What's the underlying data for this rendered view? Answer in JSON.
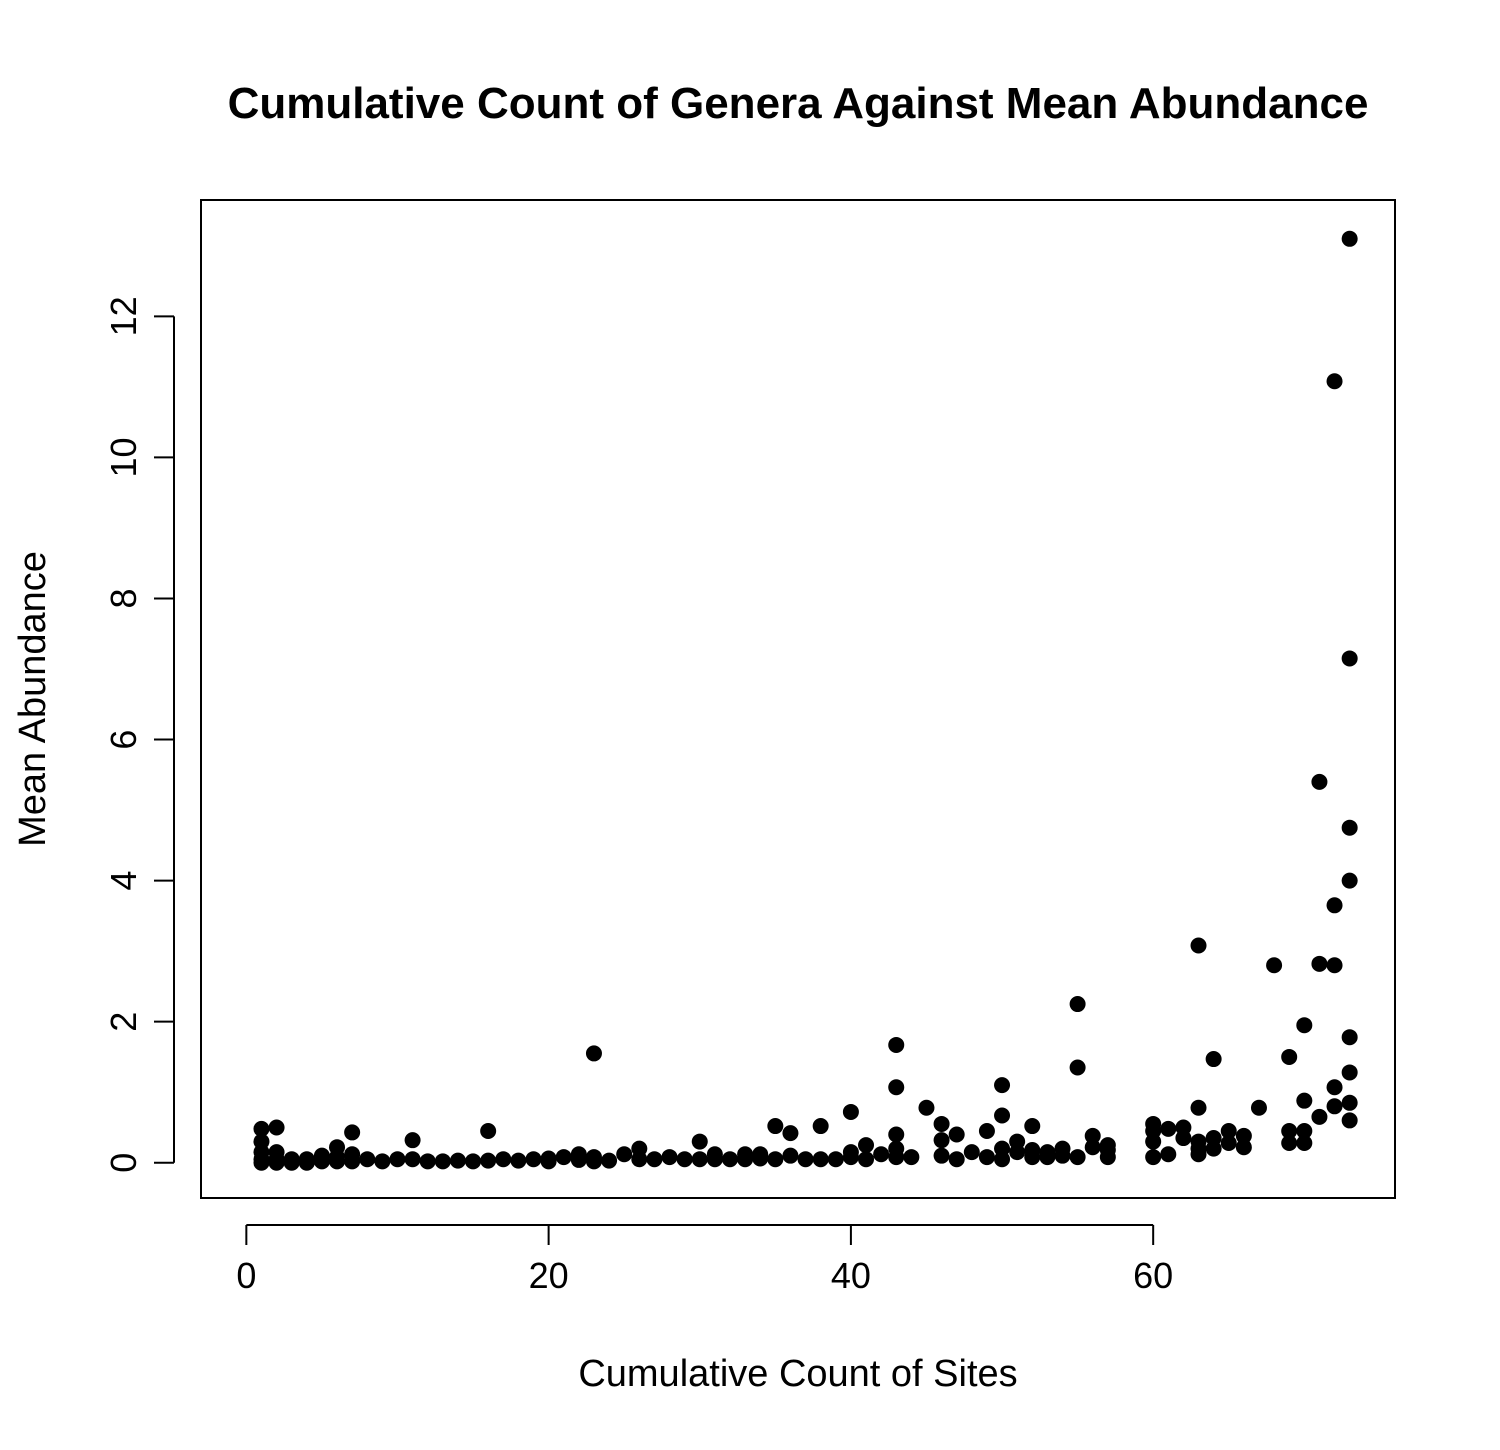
{
  "chart_data": {
    "type": "scatter",
    "title": "Cumulative Count of Genera Against Mean Abundance",
    "xlabel": "Cumulative Count of Sites",
    "ylabel": "Mean Abundance",
    "xlim": [
      -3,
      76
    ],
    "ylim": [
      -0.5,
      13.65
    ],
    "xticks": [
      0,
      20,
      40,
      60
    ],
    "yticks": [
      0,
      2,
      4,
      6,
      8,
      10,
      12
    ],
    "xtick_labels": [
      "0",
      "20",
      "40",
      "60"
    ],
    "ytick_labels": [
      "0",
      "2",
      "4",
      "6",
      "8",
      "10",
      "12"
    ],
    "grid": false,
    "marker_color": "#000000",
    "points": [
      [
        1,
        0.48
      ],
      [
        1,
        0.3
      ],
      [
        1,
        0.15
      ],
      [
        1,
        0.05
      ],
      [
        1,
        0.0
      ],
      [
        2,
        0.5
      ],
      [
        2,
        0.15
      ],
      [
        2,
        0.05
      ],
      [
        2,
        0.0
      ],
      [
        3,
        0.05
      ],
      [
        3,
        0.0
      ],
      [
        4,
        0.0
      ],
      [
        4,
        0.05
      ],
      [
        5,
        0.1
      ],
      [
        5,
        0.02
      ],
      [
        6,
        0.22
      ],
      [
        6,
        0.08
      ],
      [
        6,
        0.02
      ],
      [
        7,
        0.43
      ],
      [
        7,
        0.12
      ],
      [
        7,
        0.02
      ],
      [
        8,
        0.05
      ],
      [
        9,
        0.02
      ],
      [
        10,
        0.05
      ],
      [
        11,
        0.32
      ],
      [
        11,
        0.05
      ],
      [
        12,
        0.02
      ],
      [
        13,
        0.02
      ],
      [
        14,
        0.03
      ],
      [
        15,
        0.02
      ],
      [
        16,
        0.45
      ],
      [
        16,
        0.03
      ],
      [
        17,
        0.05
      ],
      [
        18,
        0.03
      ],
      [
        19,
        0.05
      ],
      [
        20,
        0.02
      ],
      [
        20,
        0.06
      ],
      [
        21,
        0.08
      ],
      [
        22,
        0.12
      ],
      [
        22,
        0.04
      ],
      [
        23,
        1.55
      ],
      [
        23,
        0.08
      ],
      [
        23,
        0.02
      ],
      [
        24,
        0.03
      ],
      [
        25,
        0.12
      ],
      [
        26,
        0.2
      ],
      [
        26,
        0.05
      ],
      [
        27,
        0.05
      ],
      [
        28,
        0.08
      ],
      [
        29,
        0.05
      ],
      [
        30,
        0.3
      ],
      [
        30,
        0.05
      ],
      [
        31,
        0.12
      ],
      [
        31,
        0.05
      ],
      [
        32,
        0.05
      ],
      [
        33,
        0.12
      ],
      [
        33,
        0.05
      ],
      [
        34,
        0.12
      ],
      [
        34,
        0.06
      ],
      [
        35,
        0.52
      ],
      [
        35,
        0.05
      ],
      [
        36,
        0.42
      ],
      [
        36,
        0.1
      ],
      [
        37,
        0.05
      ],
      [
        38,
        0.52
      ],
      [
        38,
        0.05
      ],
      [
        39,
        0.05
      ],
      [
        40,
        0.72
      ],
      [
        40,
        0.15
      ],
      [
        40,
        0.08
      ],
      [
        41,
        0.25
      ],
      [
        41,
        0.05
      ],
      [
        42,
        0.12
      ],
      [
        43,
        1.67
      ],
      [
        43,
        1.07
      ],
      [
        43,
        0.4
      ],
      [
        43,
        0.2
      ],
      [
        43,
        0.08
      ],
      [
        44,
        0.08
      ],
      [
        45,
        0.78
      ],
      [
        46,
        0.55
      ],
      [
        46,
        0.32
      ],
      [
        46,
        0.1
      ],
      [
        47,
        0.4
      ],
      [
        47,
        0.05
      ],
      [
        48,
        0.15
      ],
      [
        49,
        0.45
      ],
      [
        49,
        0.08
      ],
      [
        50,
        1.1
      ],
      [
        50,
        0.67
      ],
      [
        50,
        0.2
      ],
      [
        50,
        0.05
      ],
      [
        51,
        0.3
      ],
      [
        51,
        0.15
      ],
      [
        52,
        0.52
      ],
      [
        52,
        0.18
      ],
      [
        52,
        0.08
      ],
      [
        53,
        0.15
      ],
      [
        53,
        0.08
      ],
      [
        54,
        0.2
      ],
      [
        54,
        0.1
      ],
      [
        55,
        2.25
      ],
      [
        55,
        1.35
      ],
      [
        55,
        0.08
      ],
      [
        56,
        0.38
      ],
      [
        56,
        0.22
      ],
      [
        57,
        0.25
      ],
      [
        57,
        0.18
      ],
      [
        57,
        0.08
      ],
      [
        60,
        0.55
      ],
      [
        60,
        0.45
      ],
      [
        60,
        0.3
      ],
      [
        60,
        0.08
      ],
      [
        61,
        0.48
      ],
      [
        61,
        0.12
      ],
      [
        62,
        0.5
      ],
      [
        62,
        0.35
      ],
      [
        63,
        3.08
      ],
      [
        63,
        0.78
      ],
      [
        63,
        0.3
      ],
      [
        63,
        0.2
      ],
      [
        63,
        0.12
      ],
      [
        64,
        1.47
      ],
      [
        64,
        0.35
      ],
      [
        64,
        0.2
      ],
      [
        65,
        0.45
      ],
      [
        65,
        0.28
      ],
      [
        66,
        0.38
      ],
      [
        66,
        0.22
      ],
      [
        67,
        0.78
      ],
      [
        68,
        2.8
      ],
      [
        69,
        1.5
      ],
      [
        69,
        0.45
      ],
      [
        69,
        0.28
      ],
      [
        70,
        1.95
      ],
      [
        70,
        0.88
      ],
      [
        70,
        0.45
      ],
      [
        70,
        0.28
      ],
      [
        71,
        5.4
      ],
      [
        71,
        2.82
      ],
      [
        71,
        0.65
      ],
      [
        72,
        11.08
      ],
      [
        72,
        3.65
      ],
      [
        72,
        2.8
      ],
      [
        72,
        1.07
      ],
      [
        72,
        0.8
      ],
      [
        73,
        13.1
      ],
      [
        73,
        7.15
      ],
      [
        73,
        4.75
      ],
      [
        73,
        4.0
      ],
      [
        73,
        1.78
      ],
      [
        73,
        1.28
      ],
      [
        73,
        0.85
      ],
      [
        73,
        0.6
      ]
    ]
  }
}
